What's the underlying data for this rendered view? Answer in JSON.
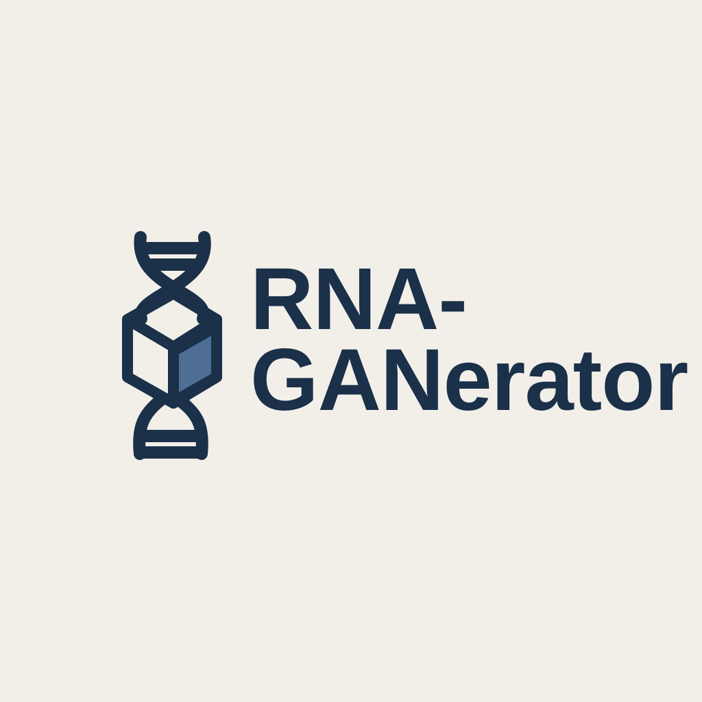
{
  "brand": {
    "name_line_1": "RNA-",
    "name_line_2": "GANerator"
  },
  "logo": {
    "icon": "dna-helix-cube-icon",
    "primary_color": "#1b3049",
    "accent_color": "#4e6f93",
    "background_color": "#f2efe9"
  }
}
